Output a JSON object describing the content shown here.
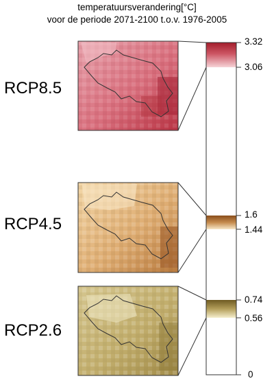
{
  "title": {
    "line1": "temperatuursverandering[°C]",
    "line2": "voor de periode 2071-2100 t.o.v. 1976-2005"
  },
  "scenarios": [
    {
      "label": "RCP8.5",
      "min": 3.06,
      "max": 3.32
    },
    {
      "label": "RCP4.5",
      "min": 1.44,
      "max": 1.6
    },
    {
      "label": "RCP2.6",
      "min": 0.56,
      "max": 0.74
    }
  ],
  "colorbar": {
    "zero_label": "0",
    "ticks": [
      "3.32",
      "3.06",
      "1.6",
      "1.44",
      "0.74",
      "0.56"
    ]
  },
  "colors": {
    "rcp85_light": "#f4c6cc",
    "rcp85_dark": "#a31d2c",
    "rcp45_light": "#f6e1bd",
    "rcp45_dark": "#8a4e1c",
    "rcp26_light": "#f2ecc8",
    "rcp26_dark": "#6e5a22"
  }
}
